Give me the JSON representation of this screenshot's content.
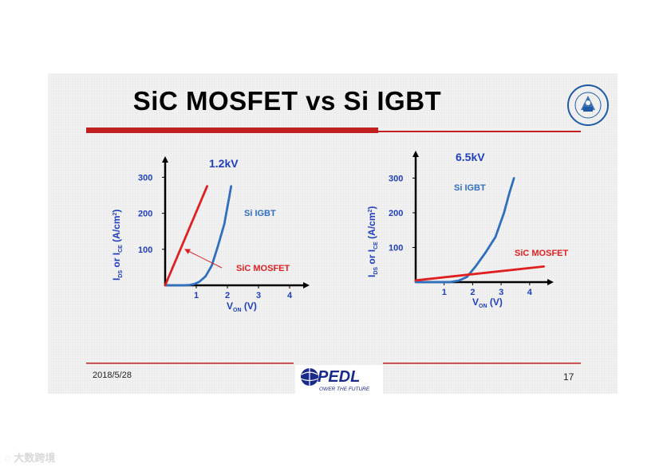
{
  "slide": {
    "title": "SiC MOSFET  vs Si IGBT",
    "date": "2018/5/28",
    "page_number": "17",
    "logo_text": "PEDL",
    "logo_tagline": "OWER THE FUTURE",
    "watermark": "大数跨境"
  },
  "colors": {
    "axis_label": "#1f3fbf",
    "igbt": "#2f6fbf",
    "mosfet": "#e02020",
    "rule": "#c02020"
  },
  "chart_data": [
    {
      "type": "line",
      "title": "1.2kV",
      "xlabel": "VON (V)",
      "xlabel_main": "V",
      "xlabel_sub": "ON",
      "xlabel_unit": " (V)",
      "ylabel_parts": [
        "I",
        "DS",
        " or I",
        "CE",
        " (A/cm",
        "2",
        ")"
      ],
      "xticks": [
        "1",
        "2",
        "3",
        "4"
      ],
      "yticks": [
        "100",
        "200",
        "300"
      ],
      "xlim": [
        0,
        4.5
      ],
      "ylim": [
        0,
        340
      ],
      "series": [
        {
          "name": "Si IGBT",
          "color": "#2f6fbf",
          "x": [
            0,
            0.6,
            0.8,
            0.95,
            1.1,
            1.3,
            1.5,
            1.7,
            1.9,
            2.05,
            2.12
          ],
          "y": [
            0,
            0,
            1,
            4,
            10,
            25,
            55,
            110,
            170,
            240,
            275
          ]
        },
        {
          "name": "SiC MOSFET",
          "color": "#e02020",
          "x": [
            0,
            1.35
          ],
          "y": [
            0,
            275
          ]
        }
      ]
    },
    {
      "type": "line",
      "title": "6.5kV",
      "xlabel": "VON (V)",
      "xlabel_main": "V",
      "xlabel_sub": "ON",
      "xlabel_unit": " (V)",
      "ylabel_parts": [
        "I",
        "DS",
        " or I",
        "CE",
        " (A/cm",
        "2",
        ")"
      ],
      "xticks": [
        "1",
        "2",
        "3",
        "4"
      ],
      "yticks": [
        "100",
        "200",
        "300"
      ],
      "xlim": [
        0,
        4.6
      ],
      "ylim": [
        0,
        330
      ],
      "series": [
        {
          "name": "Si IGBT",
          "color": "#2f6fbf",
          "x": [
            0,
            1.2,
            1.5,
            1.8,
            2.1,
            2.45,
            2.8,
            3.1,
            3.3,
            3.45
          ],
          "y": [
            0,
            0,
            4,
            15,
            45,
            85,
            130,
            200,
            260,
            300
          ]
        },
        {
          "name": "SiC MOSFET",
          "color": "#e02020",
          "x": [
            0,
            4.5
          ],
          "y": [
            5,
            45
          ]
        }
      ]
    }
  ]
}
